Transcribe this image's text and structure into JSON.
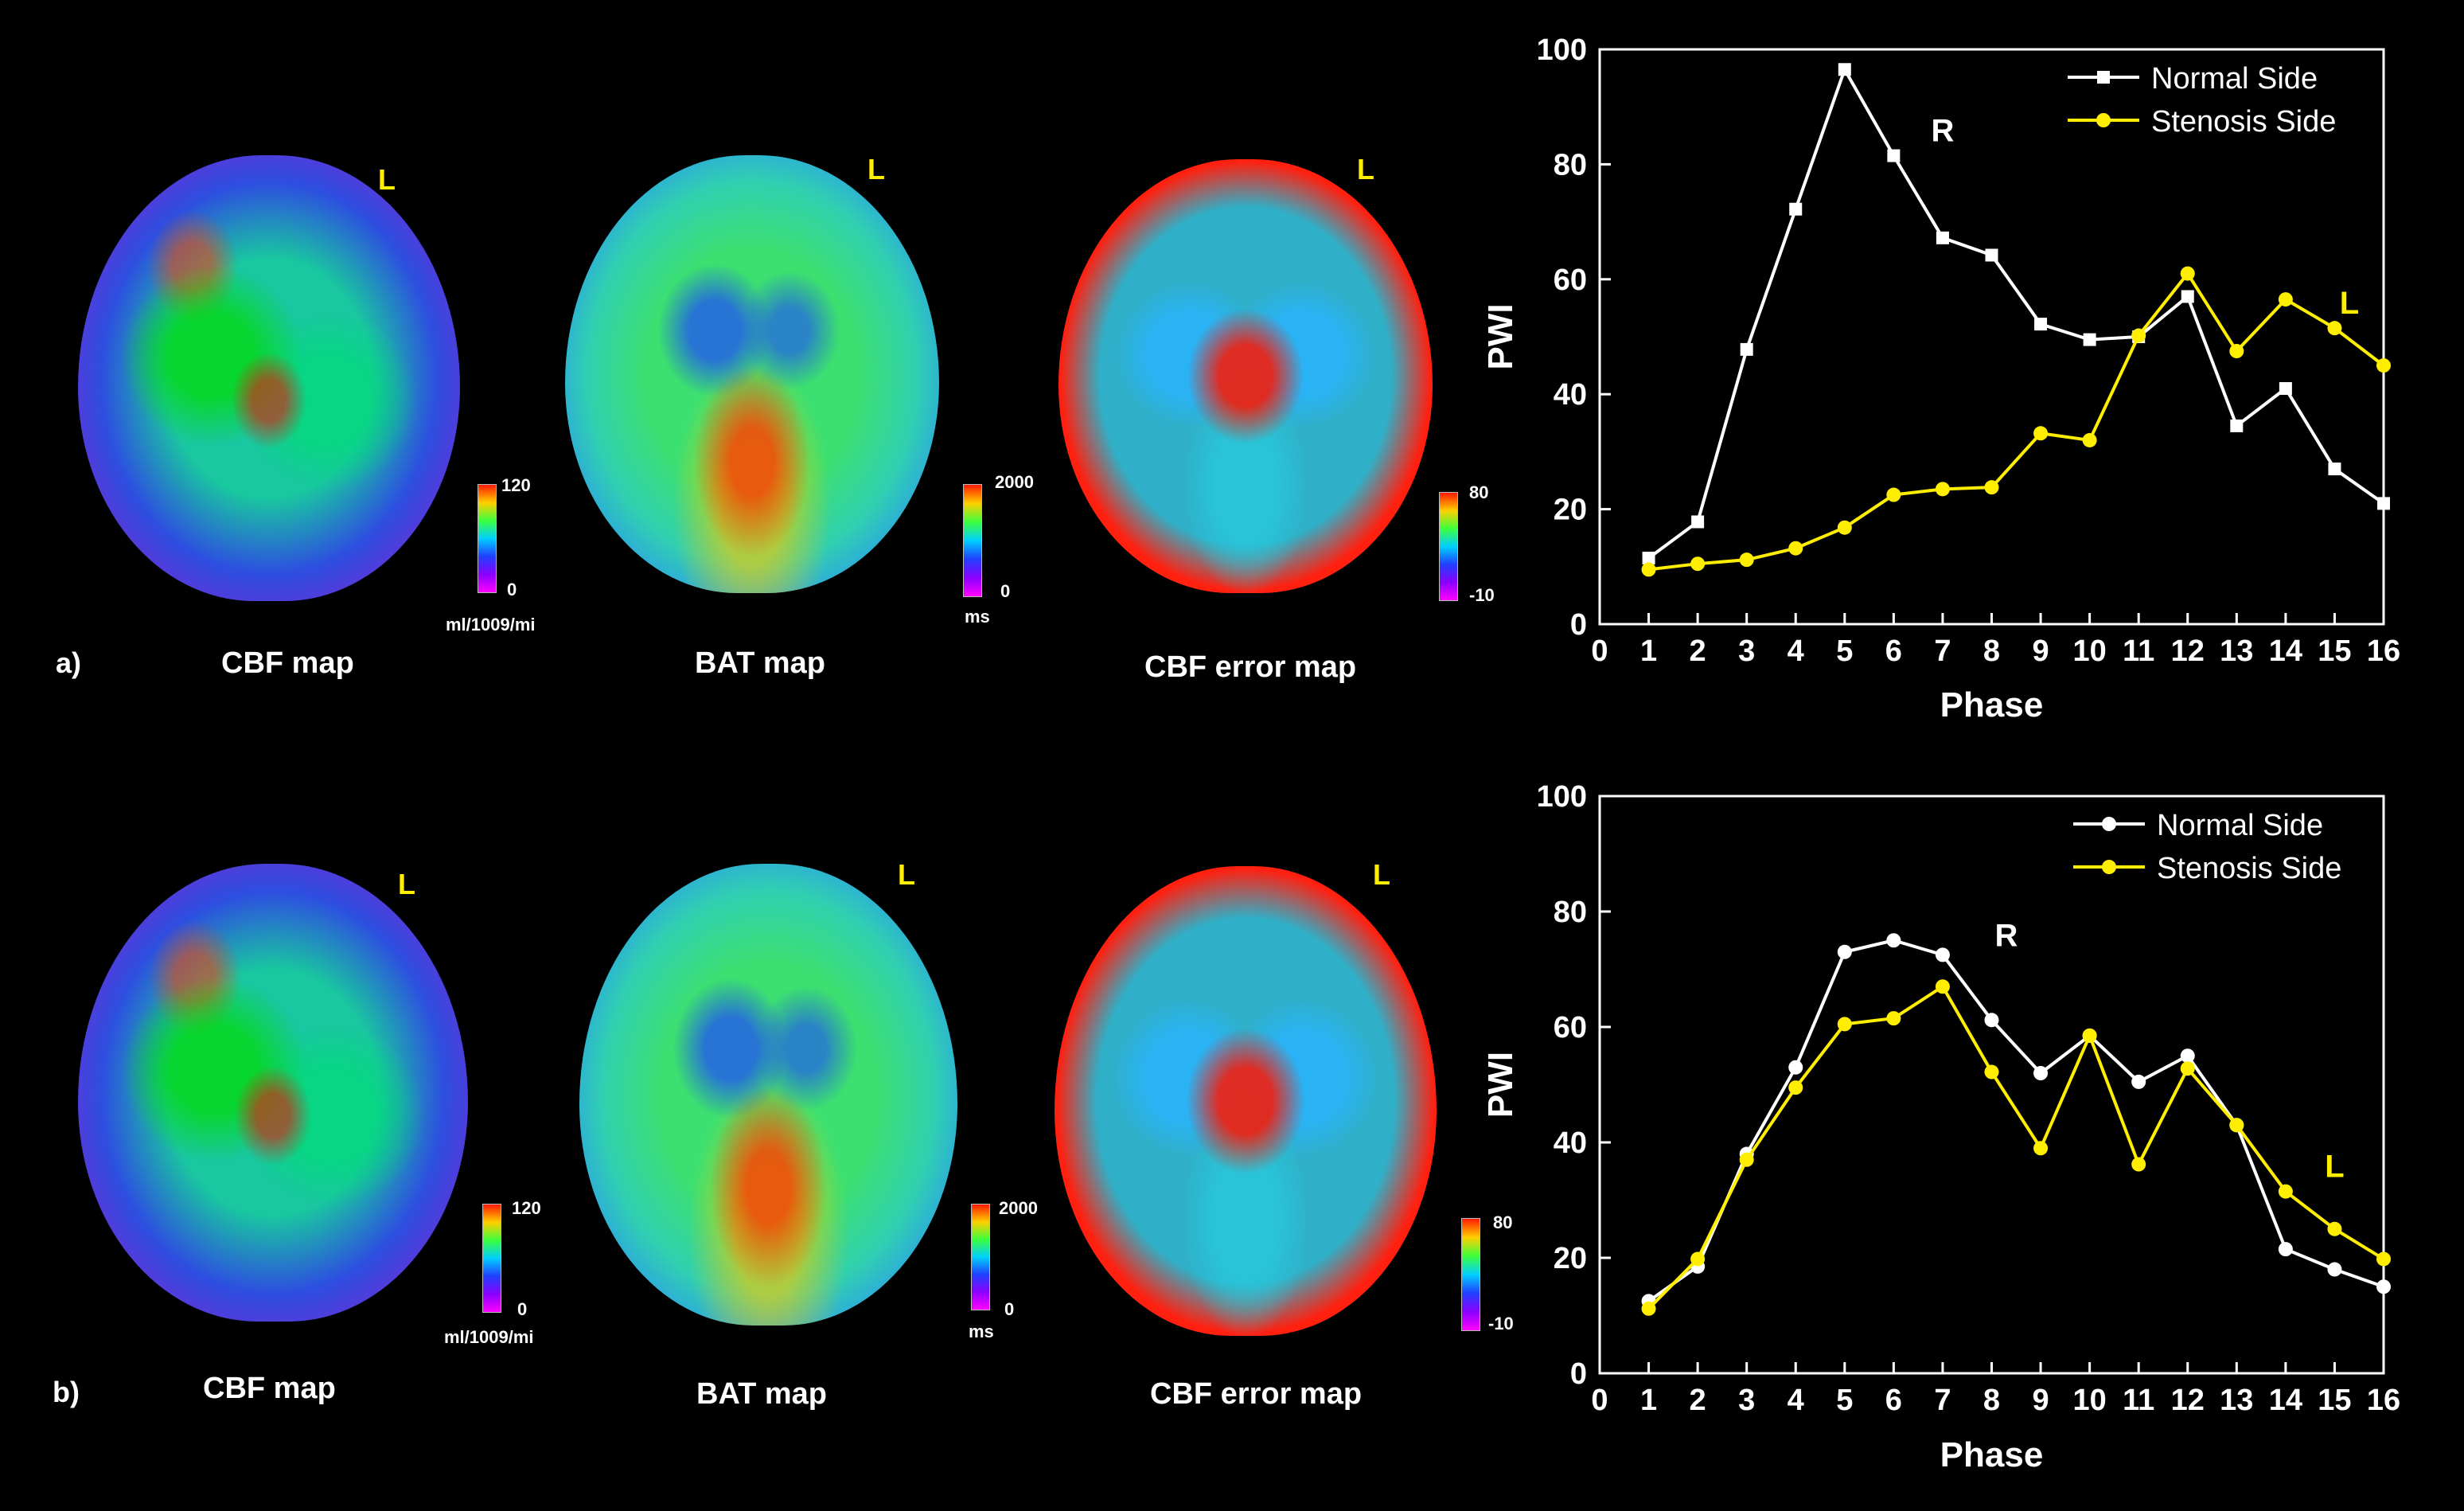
{
  "panels": [
    {
      "label": "a)",
      "maps": [
        {
          "title": "CBF map",
          "l_mark": "L",
          "scale_max": "120",
          "scale_min": "0",
          "unit": "ml/1009/mi"
        },
        {
          "title": "BAT map",
          "l_mark": "L",
          "scale_max": "2000",
          "scale_min": "0",
          "unit": "ms"
        },
        {
          "title": "CBF error map",
          "l_mark": "L",
          "scale_max": "80",
          "scale_min": "-10",
          "unit": ""
        }
      ]
    },
    {
      "label": "b)",
      "maps": [
        {
          "title": "CBF map",
          "l_mark": "L",
          "scale_max": "120",
          "scale_min": "0",
          "unit": "ml/1009/mi"
        },
        {
          "title": "BAT map",
          "l_mark": "L",
          "scale_max": "2000",
          "scale_min": "0",
          "unit": "ms"
        },
        {
          "title": "CBF error map",
          "l_mark": "L",
          "scale_max": "80",
          "scale_min": "-10",
          "unit": ""
        }
      ]
    }
  ],
  "chart_data": [
    {
      "type": "line",
      "xlabel": "Phase",
      "ylabel": "PWI",
      "xlim": [
        0,
        16
      ],
      "ylim": [
        0,
        100
      ],
      "xticks": [
        0,
        1,
        2,
        3,
        4,
        5,
        6,
        7,
        8,
        9,
        10,
        11,
        12,
        13,
        14,
        15,
        16
      ],
      "yticks": [
        0,
        20,
        40,
        60,
        80,
        100
      ],
      "legend_position": "top-right",
      "annotations": [
        {
          "text": "R",
          "x": 7,
          "y": 84,
          "color": "#ffffff"
        },
        {
          "text": "L",
          "x": 15.3,
          "y": 54,
          "color": "#ffee00"
        }
      ],
      "x": [
        1,
        2,
        3,
        4,
        5,
        6,
        7,
        8,
        9,
        10,
        11,
        12,
        13,
        14,
        15,
        16
      ],
      "series": [
        {
          "name": "Normal Side",
          "color": "#ffffff",
          "marker": "square",
          "values": [
            11.5,
            17.8,
            47.8,
            72.2,
            96.5,
            81.5,
            67.2,
            64.2,
            52.2,
            49.5,
            50.0,
            57.0,
            34.5,
            41.0,
            27.0,
            21.0
          ]
        },
        {
          "name": "Stenosis Side",
          "color": "#ffee00",
          "marker": "circle",
          "values": [
            9.5,
            10.5,
            11.2,
            13.2,
            16.8,
            22.5,
            23.5,
            23.8,
            33.2,
            32.0,
            50.2,
            61.0,
            47.5,
            56.5,
            51.5,
            45.0
          ]
        }
      ]
    },
    {
      "type": "line",
      "xlabel": "Phase",
      "ylabel": "PWI",
      "xlim": [
        0,
        16
      ],
      "ylim": [
        0,
        100
      ],
      "xticks": [
        0,
        1,
        2,
        3,
        4,
        5,
        6,
        7,
        8,
        9,
        10,
        11,
        12,
        13,
        14,
        15,
        16
      ],
      "yticks": [
        0,
        20,
        40,
        60,
        80,
        100
      ],
      "legend_position": "top-right",
      "annotations": [
        {
          "text": "R",
          "x": 8.3,
          "y": 74,
          "color": "#ffffff"
        },
        {
          "text": "L",
          "x": 15,
          "y": 34,
          "color": "#ffee00"
        }
      ],
      "x": [
        1,
        2,
        3,
        4,
        5,
        6,
        7,
        8,
        9,
        10,
        11,
        12,
        13,
        14,
        15,
        16
      ],
      "series": [
        {
          "name": "Normal Side",
          "color": "#ffffff",
          "marker": "circle",
          "values": [
            12.5,
            18.5,
            38.0,
            53.0,
            73.0,
            75.0,
            72.5,
            61.2,
            52.0,
            58.5,
            50.5,
            55.0,
            43.0,
            21.5,
            18.0,
            15.0
          ]
        },
        {
          "name": "Stenosis Side",
          "color": "#ffee00",
          "marker": "circle",
          "values": [
            11.2,
            19.8,
            37.0,
            49.5,
            60.5,
            61.5,
            67.0,
            52.2,
            39.0,
            58.5,
            36.2,
            52.8,
            43.0,
            31.5,
            25.0,
            19.8
          ]
        }
      ]
    }
  ]
}
